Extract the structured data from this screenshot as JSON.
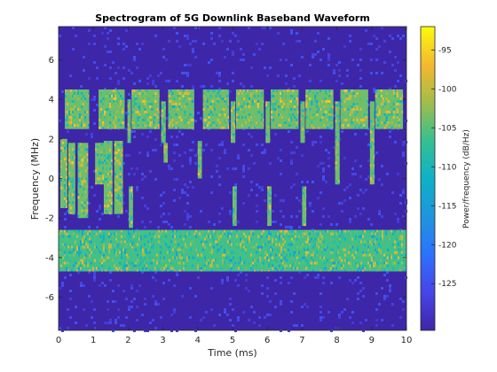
{
  "chart_data": {
    "type": "heatmap",
    "title": "Spectrogram of 5G Downlink Baseband Waveform",
    "xlabel": "Time (ms)",
    "ylabel": "Frequency (MHz)",
    "xlim": [
      0,
      10
    ],
    "ylim": [
      -7.68,
      7.68
    ],
    "x_ticks": [
      0,
      1,
      2,
      3,
      4,
      5,
      6,
      7,
      8,
      9,
      10
    ],
    "y_ticks": [
      -6,
      -4,
      -2,
      0,
      2,
      4,
      6
    ],
    "colorbar": {
      "label": "Power/frequency (dB/Hz)",
      "range": [
        -131,
        -92
      ],
      "ticks": [
        -95,
        -100,
        -105,
        -110,
        -115,
        -120,
        -125
      ],
      "colormap": "parula"
    },
    "background_level_db": -130,
    "regions": [
      {
        "name": "lower-band",
        "t": [
          0,
          10
        ],
        "f": [
          -4.7,
          -2.6
        ],
        "level_db": -106
      },
      {
        "name": "upper-burst",
        "t": [
          0.18,
          0.88
        ],
        "f": [
          2.5,
          4.5
        ],
        "level_db": -104
      },
      {
        "name": "upper-burst",
        "t": [
          1.15,
          1.9
        ],
        "f": [
          2.5,
          4.5
        ],
        "level_db": -104
      },
      {
        "name": "upper-burst",
        "t": [
          2.1,
          2.9
        ],
        "f": [
          2.5,
          4.5
        ],
        "level_db": -104
      },
      {
        "name": "upper-burst",
        "t": [
          3.15,
          3.9
        ],
        "f": [
          2.5,
          4.5
        ],
        "level_db": -104
      },
      {
        "name": "upper-burst",
        "t": [
          4.15,
          4.9
        ],
        "f": [
          2.5,
          4.5
        ],
        "level_db": -104
      },
      {
        "name": "upper-burst",
        "t": [
          5.1,
          5.9
        ],
        "f": [
          2.5,
          4.5
        ],
        "level_db": -104
      },
      {
        "name": "upper-burst",
        "t": [
          6.1,
          6.9
        ],
        "f": [
          2.5,
          4.5
        ],
        "level_db": -104
      },
      {
        "name": "upper-burst",
        "t": [
          7.1,
          7.9
        ],
        "f": [
          2.5,
          4.5
        ],
        "level_db": -104
      },
      {
        "name": "upper-burst",
        "t": [
          8.1,
          8.9
        ],
        "f": [
          2.5,
          4.5
        ],
        "level_db": -104
      },
      {
        "name": "upper-burst",
        "t": [
          9.1,
          9.9
        ],
        "f": [
          2.5,
          4.5
        ],
        "level_db": -104
      },
      {
        "name": "mid-block",
        "t": [
          0.05,
          0.25
        ],
        "f": [
          -1.5,
          2.0
        ],
        "level_db": -104
      },
      {
        "name": "mid-block",
        "t": [
          0.28,
          0.48
        ],
        "f": [
          -1.8,
          1.8
        ],
        "level_db": -104
      },
      {
        "name": "mid-block",
        "t": [
          0.55,
          0.85
        ],
        "f": [
          -2.0,
          1.8
        ],
        "level_db": -104
      },
      {
        "name": "mid-block",
        "t": [
          1.05,
          1.3
        ],
        "f": [
          -0.3,
          1.8
        ],
        "level_db": -104
      },
      {
        "name": "mid-block",
        "t": [
          1.3,
          1.55
        ],
        "f": [
          -1.8,
          1.9
        ],
        "level_db": -104
      },
      {
        "name": "mid-block",
        "t": [
          1.6,
          1.85
        ],
        "f": [
          -1.8,
          1.9
        ],
        "level_db": -104
      },
      {
        "name": "narrow-strip",
        "t": [
          1.98,
          2.08
        ],
        "f": [
          1.8,
          4.0
        ],
        "level_db": -104
      },
      {
        "name": "narrow-strip",
        "t": [
          2.02,
          2.14
        ],
        "f": [
          -2.5,
          -0.4
        ],
        "level_db": -104
      },
      {
        "name": "narrow-strip",
        "t": [
          2.95,
          3.08
        ],
        "f": [
          1.8,
          3.9
        ],
        "level_db": -104
      },
      {
        "name": "narrow-strip",
        "t": [
          3.02,
          3.14
        ],
        "f": [
          0.8,
          1.8
        ],
        "level_db": -104
      },
      {
        "name": "narrow-strip",
        "t": [
          4.0,
          4.12
        ],
        "f": [
          0.0,
          1.9
        ],
        "level_db": -104
      },
      {
        "name": "narrow-strip",
        "t": [
          4.95,
          5.08
        ],
        "f": [
          1.8,
          3.9
        ],
        "level_db": -104
      },
      {
        "name": "narrow-strip",
        "t": [
          5.0,
          5.12
        ],
        "f": [
          -2.4,
          -0.4
        ],
        "level_db": -104
      },
      {
        "name": "narrow-strip",
        "t": [
          5.95,
          6.08
        ],
        "f": [
          1.8,
          3.9
        ],
        "level_db": -104
      },
      {
        "name": "narrow-strip",
        "t": [
          6.0,
          6.12
        ],
        "f": [
          -2.4,
          -0.4
        ],
        "level_db": -104
      },
      {
        "name": "narrow-strip",
        "t": [
          6.95,
          7.08
        ],
        "f": [
          1.8,
          3.9
        ],
        "level_db": -104
      },
      {
        "name": "narrow-strip",
        "t": [
          7.0,
          7.12
        ],
        "f": [
          -2.4,
          -0.4
        ],
        "level_db": -104
      },
      {
        "name": "narrow-strip",
        "t": [
          7.95,
          8.08
        ],
        "f": [
          1.8,
          3.9
        ],
        "level_db": -104
      },
      {
        "name": "narrow-strip",
        "t": [
          7.95,
          8.08
        ],
        "f": [
          -0.3,
          1.8
        ],
        "level_db": -104
      },
      {
        "name": "narrow-strip",
        "t": [
          8.95,
          9.08
        ],
        "f": [
          1.8,
          3.9
        ],
        "level_db": -104
      },
      {
        "name": "narrow-strip",
        "t": [
          8.95,
          9.08
        ],
        "f": [
          -0.3,
          1.8
        ],
        "level_db": -104
      }
    ]
  }
}
